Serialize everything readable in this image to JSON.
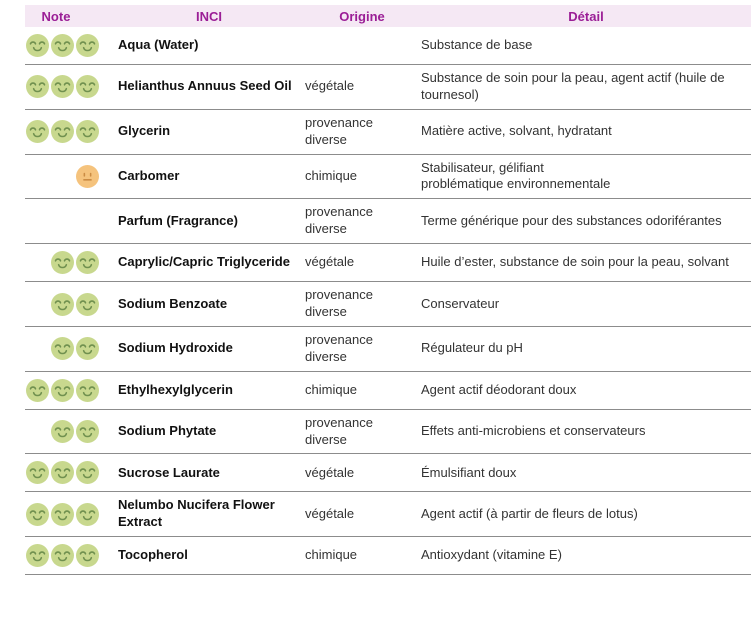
{
  "table": {
    "columns": [
      {
        "label": "Note"
      },
      {
        "label": "INCI"
      },
      {
        "label": "Origine"
      },
      {
        "label": "Détail"
      }
    ],
    "colors": {
      "header_bg": "#f5e8f4",
      "header_text": "#9b1e96",
      "separator": "#8c8c8c",
      "smiley_green_body": "#c8d88e",
      "smiley_green_features": "#70904f",
      "smiley_orange_body": "#f5c37d",
      "smiley_orange_features": "#cb8c44"
    },
    "icons": {
      "green": "smiley-happy-icon",
      "orange": "smiley-neutral-icon"
    },
    "rows": [
      {
        "note": {
          "count": 3,
          "type": "green"
        },
        "inci": "Aqua (Water)",
        "origine": "",
        "detail": "Substance de base"
      },
      {
        "note": {
          "count": 3,
          "type": "green"
        },
        "inci": "Helianthus Annuus Seed Oil",
        "origine": "végétale",
        "detail": "Substance de soin pour la peau, agent actif (huile de tournesol)"
      },
      {
        "note": {
          "count": 3,
          "type": "green"
        },
        "inci": "Glycerin",
        "origine": "provenance diverse",
        "detail": "Matière active, solvant, hydratant"
      },
      {
        "note": {
          "count": 1,
          "type": "orange"
        },
        "inci": "Carbomer",
        "origine": "chimique",
        "detail": "Stabilisateur, gélifiant\nproblématique environnementale"
      },
      {
        "note": {
          "count": 0,
          "type": "none"
        },
        "inci": "Parfum (Fragrance)",
        "origine": "provenance diverse",
        "detail": "Terme générique pour des substances odoriférantes"
      },
      {
        "note": {
          "count": 2,
          "type": "green"
        },
        "inci": "Caprylic/Capric Triglyceride",
        "origine": "végétale",
        "detail": "Huile d’ester, substance de soin pour la peau, solvant"
      },
      {
        "note": {
          "count": 2,
          "type": "green"
        },
        "inci": "Sodium Benzoate",
        "origine": "provenance diverse",
        "detail": "Conservateur"
      },
      {
        "note": {
          "count": 2,
          "type": "green"
        },
        "inci": "Sodium Hydroxide",
        "origine": "provenance diverse",
        "detail": "Régulateur du pH"
      },
      {
        "note": {
          "count": 3,
          "type": "green"
        },
        "inci": "Ethylhexylglycerin",
        "origine": "chimique",
        "detail": "Agent actif déodorant doux"
      },
      {
        "note": {
          "count": 2,
          "type": "green"
        },
        "inci": "Sodium Phytate",
        "origine": "provenance diverse",
        "detail": "Effets anti-microbiens et conservateurs"
      },
      {
        "note": {
          "count": 3,
          "type": "green"
        },
        "inci": "Sucrose Laurate",
        "origine": "végétale",
        "detail": "Émulsifiant doux"
      },
      {
        "note": {
          "count": 3,
          "type": "green"
        },
        "inci": "Nelumbo Nucifera Flower Extract",
        "origine": "végétale",
        "detail": "Agent actif (à partir de fleurs de lotus)"
      },
      {
        "note": {
          "count": 3,
          "type": "green"
        },
        "inci": "Tocopherol",
        "origine": "chimique",
        "detail": "Antioxydant (vitamine E)"
      }
    ]
  }
}
